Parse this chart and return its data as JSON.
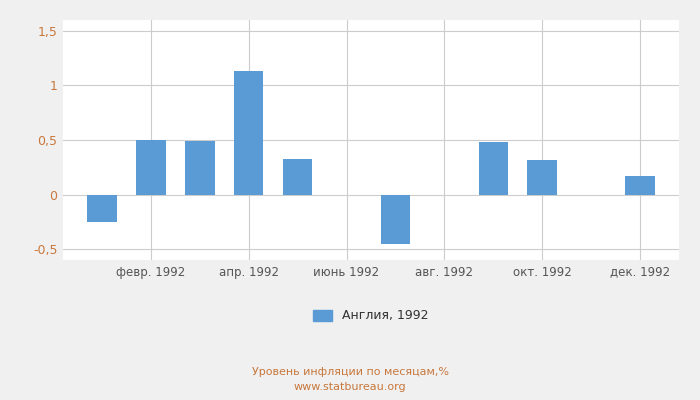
{
  "xtick_labels": [
    "февр. 1992",
    "апр. 1992",
    "июнь 1992",
    "авг. 1992",
    "окт. 1992",
    "дек. 1992"
  ],
  "xtick_positions": [
    1,
    3,
    5,
    7,
    9,
    11
  ],
  "values": [
    -0.25,
    0.5,
    0.49,
    1.13,
    0.33,
    0.0,
    -0.45,
    0.0,
    0.48,
    0.32,
    0.0,
    0.17
  ],
  "bar_color": "#5b9bd5",
  "ylim": [
    -0.6,
    1.6
  ],
  "yticks": [
    -0.5,
    0.0,
    0.5,
    1.0,
    1.5
  ],
  "ytick_labels": [
    "-0,5",
    "0",
    "0,5",
    "1",
    "1,5"
  ],
  "legend_label": "Англия, 1992",
  "footer_text": "Уровень инфляции по месяцам,%\nwww.statbureau.org",
  "grid_color": "#cccccc",
  "background_color": "#f0f0f0",
  "plot_background": "#ffffff",
  "text_color_orange": "#c8783c",
  "ytick_color": "#c8783c",
  "xtick_color": "#555555"
}
